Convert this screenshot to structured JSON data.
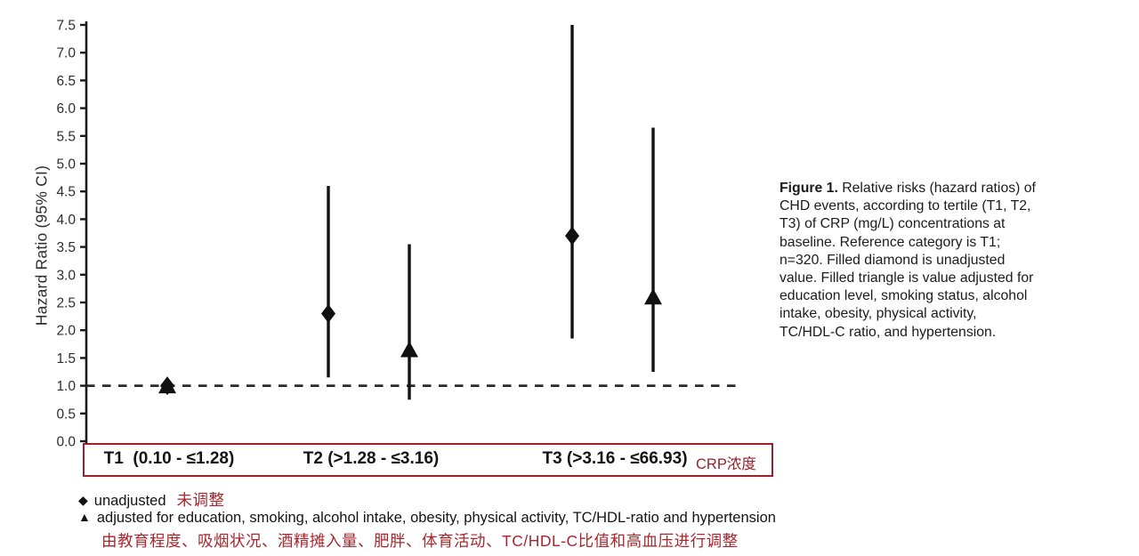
{
  "chart_data": {
    "type": "scatter",
    "subtype": "forest-plot-hazard-ratios",
    "title": "",
    "xlabel": "",
    "ylabel": "Hazard Ratio (95% CI)",
    "ylim": [
      0,
      7.5
    ],
    "ytick_step": 0.5,
    "grid": false,
    "reference_line": 1.0,
    "reference_line_style": "dashed",
    "categories": [
      "T1  (0.10 - ≤1.28)",
      "T2 (>1.28 - ≤3.16)",
      "T3 (>3.16 - ≤66.93)"
    ],
    "x_axis_note": "CRP浓度",
    "series": [
      {
        "name": "unadjusted",
        "marker": "diamond",
        "points": [
          {
            "category": "T1",
            "hr": 1.0,
            "ci_low": 1.0,
            "ci_high": 1.0,
            "note": "reference"
          },
          {
            "category": "T2",
            "hr": 2.3,
            "ci_low": 1.15,
            "ci_high": 4.6
          },
          {
            "category": "T3",
            "hr": 3.7,
            "ci_low": 1.85,
            "ci_high": 7.5,
            "note": "upper CI clipped at axis top"
          }
        ]
      },
      {
        "name": "adjusted",
        "marker": "triangle",
        "points": [
          {
            "category": "T1",
            "hr": 1.0,
            "ci_low": 1.0,
            "ci_high": 1.0,
            "note": "reference"
          },
          {
            "category": "T2",
            "hr": 1.65,
            "ci_low": 0.75,
            "ci_high": 3.55
          },
          {
            "category": "T3",
            "hr": 2.6,
            "ci_low": 1.25,
            "ci_high": 5.65
          }
        ]
      }
    ],
    "colors": {
      "marker": "#111111",
      "axis": "#1a1a1a",
      "box_red": "#97212e",
      "legend_red": "#a8272e"
    }
  },
  "legend": {
    "unadjusted": {
      "marker": "◆",
      "label_en": "unadjusted",
      "label_zh": "未调整"
    },
    "adjusted": {
      "marker": "▲",
      "label_en": "adjusted for education, smoking, alcohol intake, obesity, physical activity, TC/HDL-ratio and hypertension",
      "label_zh": "由教育程度、吸烟状况、酒精摊入量、肥胖、体育活动、TC/HDL-C比值和高血压进行调整"
    }
  },
  "caption": {
    "label": "Figure 1.",
    "lines": [
      "Relative risks (hazard ratios) of",
      "CHD events, according to tertile (T1, T2,",
      "T3) of CRP (mg/L) concentrations at",
      "baseline. Reference category is T1;",
      "n=320. Filled diamond is unadjusted",
      "value. Filled triangle is value adjusted for",
      "education level, smoking status, alcohol",
      "intake, obesity, physical activity,",
      "TC/HDL-C ratio, and hypertension."
    ]
  }
}
